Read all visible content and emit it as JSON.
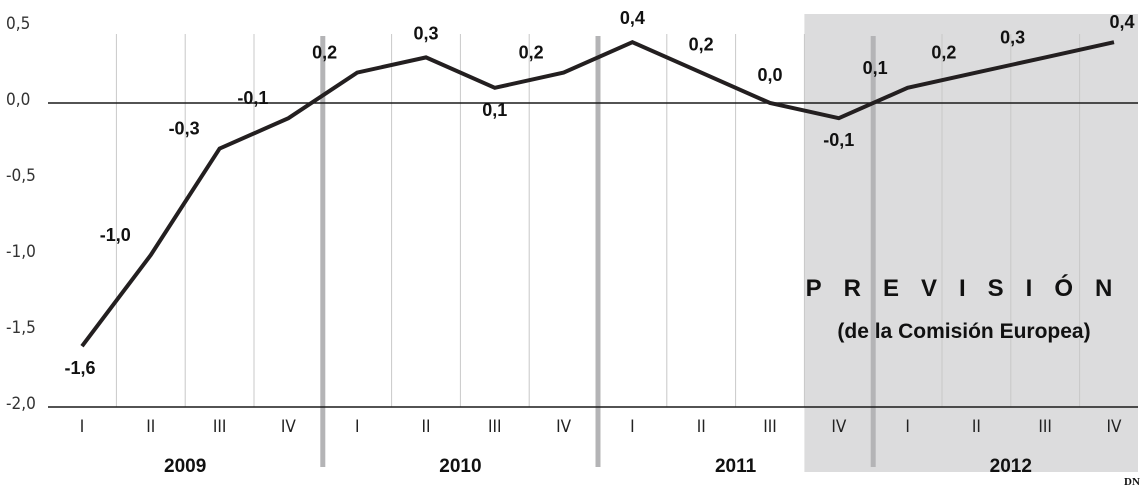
{
  "chart_data": {
    "type": "line",
    "categories": [
      "I",
      "II",
      "III",
      "IV",
      "I",
      "II",
      "III",
      "IV",
      "I",
      "II",
      "III",
      "IV",
      "I",
      "II",
      "III",
      "IV"
    ],
    "years": [
      "2009",
      "2010",
      "2011",
      "2012"
    ],
    "values": [
      -1.6,
      -1.0,
      -0.3,
      -0.1,
      0.2,
      0.3,
      0.1,
      0.2,
      0.4,
      0.2,
      0.0,
      -0.1,
      0.1,
      0.2,
      0.3,
      0.4
    ],
    "value_labels": [
      "-1,6",
      "-1,0",
      "-0,3",
      "-0,1",
      "0,2",
      "0,3",
      "0,1",
      "0,2",
      "0,4",
      "0,2",
      "0,0",
      "-0,1",
      "0,1",
      "0,2",
      "0,3",
      "0,4"
    ],
    "ylim": [
      -2.0,
      0.5
    ],
    "yticks": [
      0.5,
      0.0,
      -0.5,
      -1.0,
      -1.5,
      -2.0
    ],
    "ytick_labels": [
      "0,5",
      "0,0",
      "-0,5",
      "-1,0",
      "-1,5",
      "-2,0"
    ],
    "forecast_start_index": 11,
    "forecast_title": "PREVISIÓN",
    "forecast_subtitle": "(de la Comisión Europea)",
    "source": "DN",
    "grid": true,
    "line_color": "#231f20",
    "forecast_bg": "#dcdcdd",
    "year_divider_color": "#b4b4b6"
  }
}
